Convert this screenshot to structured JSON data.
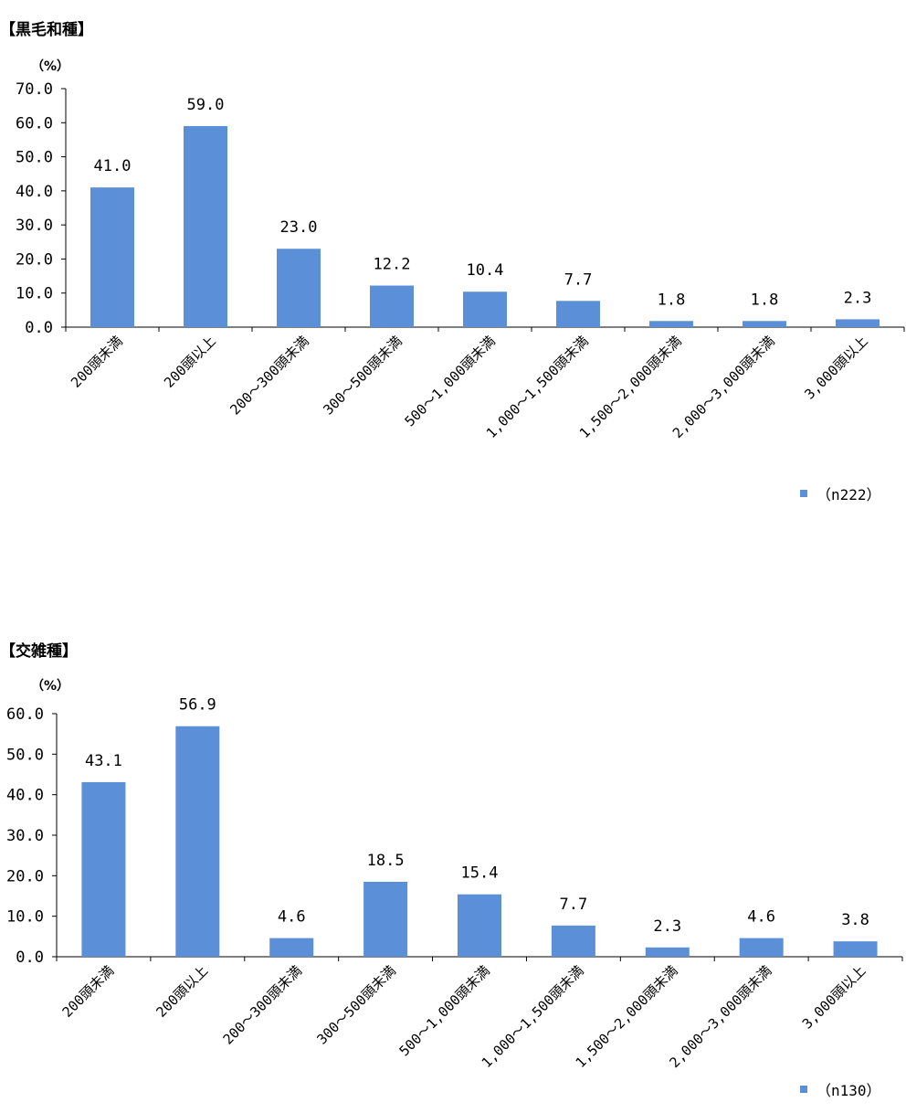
{
  "chart_data": [
    {
      "type": "bar",
      "title": "【黒毛和種】",
      "unit_label": "（%）",
      "categories": [
        "200頭未満",
        "200頭以上",
        "200～300頭未満",
        "300～500頭未満",
        "500～1,000頭未満",
        "1,000～1,500頭未満",
        "1,500～2,000頭未満",
        "2,000～3,000頭未満",
        "3,000頭以上"
      ],
      "series": [
        {
          "name": "（n222）",
          "values": [
            41.0,
            59.0,
            23.0,
            12.2,
            10.4,
            7.7,
            1.8,
            1.8,
            2.3
          ]
        }
      ],
      "value_labels": [
        "41.0",
        "59.0",
        "23.0",
        "12.2",
        "10.4",
        "7.7",
        "1.8",
        "1.8",
        "2.3"
      ],
      "ylim": [
        0,
        70
      ],
      "yticks": [
        "0.0",
        "10.0",
        "20.0",
        "30.0",
        "40.0",
        "50.0",
        "60.0",
        "70.0"
      ],
      "legend_position": "bottom-right",
      "bar_color": "#5B8FD8",
      "grid": false
    },
    {
      "type": "bar",
      "title": "【交雑種】",
      "unit_label": "（%）",
      "categories": [
        "200頭未満",
        "200頭以上",
        "200～300頭未満",
        "300～500頭未満",
        "500～1,000頭未満",
        "1,000～1,500頭未満",
        "1,500～2,000頭未満",
        "2,000～3,000頭未満",
        "3,000頭以上"
      ],
      "series": [
        {
          "name": "（n130）",
          "values": [
            43.1,
            56.9,
            4.6,
            18.5,
            15.4,
            7.7,
            2.3,
            4.6,
            3.8
          ]
        }
      ],
      "value_labels": [
        "43.1",
        "56.9",
        "4.6",
        "18.5",
        "15.4",
        "7.7",
        "2.3",
        "4.6",
        "3.8"
      ],
      "ylim": [
        0,
        60
      ],
      "yticks": [
        "0.0",
        "10.0",
        "20.0",
        "30.0",
        "40.0",
        "50.0",
        "60.0"
      ],
      "legend_position": "bottom-right",
      "bar_color": "#5B8FD8",
      "grid": false
    }
  ]
}
